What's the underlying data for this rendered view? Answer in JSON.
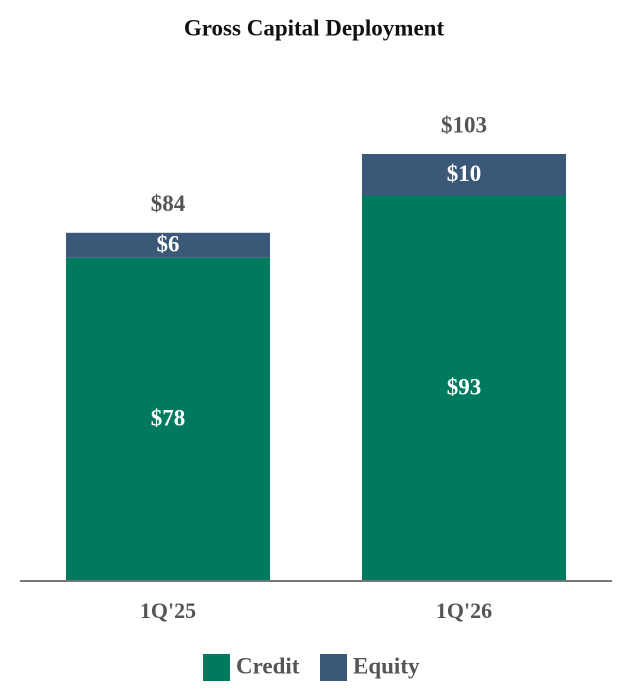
{
  "chart_data": {
    "type": "stacked-bar",
    "title": "Gross Capital Deployment",
    "categories": [
      "1Q'25",
      "1Q'26"
    ],
    "series": [
      {
        "name": "Credit",
        "color": "#007a5e",
        "values": [
          78,
          93
        ],
        "value_labels": [
          "$78",
          "$93"
        ]
      },
      {
        "name": "Equity",
        "color": "#3b5878",
        "values": [
          6,
          10
        ],
        "value_labels": [
          "$6",
          "$10"
        ]
      }
    ],
    "totals": {
      "values": [
        84,
        103
      ],
      "value_labels": [
        "$84",
        "$103"
      ]
    },
    "ylim": [
      0,
      110
    ]
  }
}
